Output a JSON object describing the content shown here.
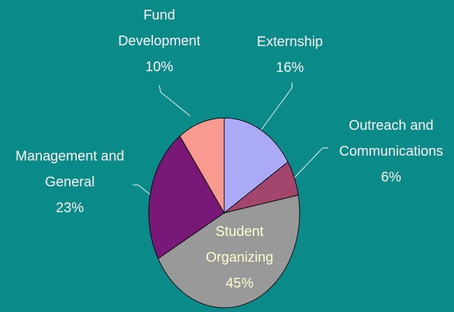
{
  "chart_data": {
    "type": "pie",
    "categories": [
      "Externship",
      "Outreach and Communications",
      "Student Organizing",
      "Management and General",
      "Fund Development"
    ],
    "values": [
      16,
      6,
      45,
      23,
      10
    ],
    "value_labels": [
      "16%",
      "6%",
      "45%",
      "23%",
      "10%"
    ],
    "colors": [
      "#aaaaf7",
      "#a3466e",
      "#999999",
      "#7a1878",
      "#f89a8f"
    ]
  }
}
